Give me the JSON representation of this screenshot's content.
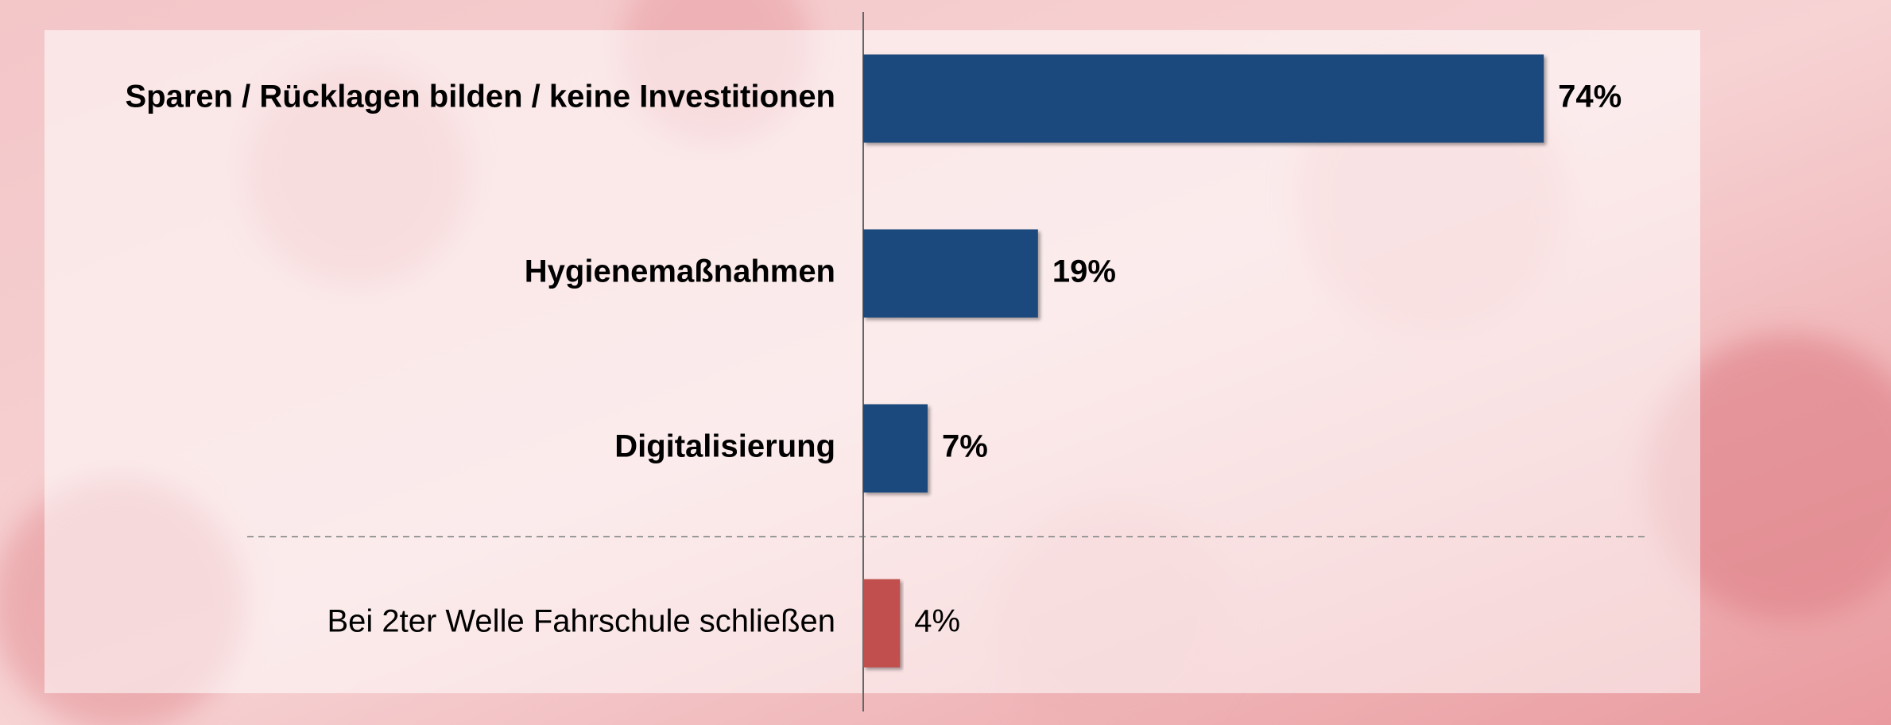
{
  "chart_data": {
    "type": "hbar",
    "categories": [
      "Sparen / Rücklagen bilden / keine Investitionen",
      "Hygienemaßnahmen",
      "Digitalisierung",
      "Bei 2ter Welle Fahrschule schließen"
    ],
    "values": [
      74,
      19,
      7,
      4
    ],
    "value_labels": [
      "74%",
      "19%",
      "7%",
      "4%"
    ],
    "color": "#1f497d",
    "colors": [
      "#1f497d",
      "#1f497d",
      "#1f497d",
      "#c0504d"
    ]
  }
}
